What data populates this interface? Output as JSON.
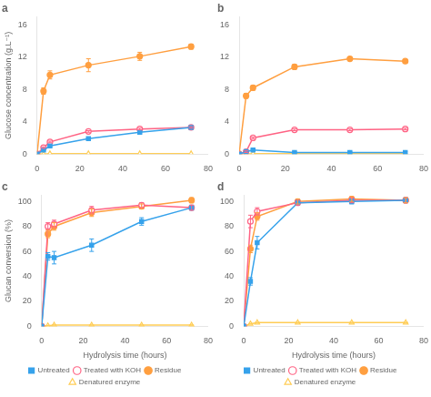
{
  "chart_data": [
    {
      "type": "line",
      "title": "a",
      "x": [
        0,
        3,
        6,
        24,
        48,
        72
      ],
      "xlim": [
        0,
        80
      ],
      "xticks": [
        0,
        20,
        40,
        60,
        80
      ],
      "ylim": [
        0,
        17
      ],
      "yticks": [
        0,
        4,
        8,
        12,
        16
      ],
      "ylabel": "Glucose concentration (g.L⁻¹)",
      "grid": false,
      "series": [
        {
          "name": "Untreated",
          "values": [
            0,
            0.5,
            1.0,
            1.9,
            2.7,
            3.3
          ],
          "errors": [
            0,
            0.1,
            0.1,
            0.1,
            0.1,
            0.1
          ],
          "marker": "square",
          "line_style": "solid"
        },
        {
          "name": "Treated with KOH",
          "values": [
            0,
            0.8,
            1.5,
            2.8,
            3.1,
            3.3
          ],
          "errors": [
            0,
            0.1,
            0.1,
            0.1,
            0.1,
            0.1
          ],
          "marker": "open_circle",
          "line_style": "solid"
        },
        {
          "name": "Residue",
          "values": [
            0,
            7.8,
            9.8,
            11.0,
            12.1,
            13.3
          ],
          "errors": [
            0,
            0.4,
            0.5,
            0.8,
            0.5,
            0.3
          ],
          "marker": "circle",
          "line_style": "solid"
        },
        {
          "name": "Denatured enzyme",
          "values": [
            0,
            0.0,
            0.05,
            0.05,
            0.05,
            0.05
          ],
          "errors": [
            0,
            0.0,
            0.0,
            0.0,
            0.0,
            0.0
          ],
          "marker": "open_triangle",
          "line_style": "solid"
        }
      ]
    },
    {
      "type": "line",
      "title": "b",
      "x": [
        0,
        3,
        6,
        24,
        48,
        72
      ],
      "xlim": [
        0,
        80
      ],
      "xticks": [
        0,
        20,
        40,
        60,
        80
      ],
      "ylim": [
        0,
        17
      ],
      "yticks": [
        0,
        4,
        8,
        12,
        16
      ],
      "grid": false,
      "series": [
        {
          "name": "Untreated",
          "values": [
            0,
            0.3,
            0.5,
            0.2,
            0.2,
            0.2
          ],
          "errors": [
            0,
            0.1,
            0.1,
            0.1,
            0.1,
            0.1
          ],
          "marker": "square",
          "line_style": "solid"
        },
        {
          "name": "Treated with KOH",
          "values": [
            0,
            0.3,
            2.0,
            3.0,
            3.0,
            3.1
          ],
          "errors": [
            0,
            0.1,
            0.1,
            0.1,
            0.1,
            0.1
          ],
          "marker": "open_circle",
          "line_style": "solid"
        },
        {
          "name": "Residue",
          "values": [
            0,
            7.2,
            8.2,
            10.8,
            11.8,
            11.5
          ],
          "errors": [
            0,
            0.3,
            0.3,
            0.3,
            0.2,
            0.2
          ],
          "marker": "circle",
          "line_style": "solid"
        },
        {
          "name": "Denatured enzyme",
          "values": [
            0,
            0.0,
            0.05,
            0.05,
            0.05,
            0.05
          ],
          "errors": [
            0,
            0.0,
            0.0,
            0.0,
            0.0,
            0.0
          ],
          "marker": "open_triangle",
          "line_style": "solid"
        }
      ]
    },
    {
      "type": "line",
      "title": "c",
      "x": [
        0,
        3,
        6,
        24,
        48,
        72
      ],
      "xlim": [
        0,
        80
      ],
      "xticks": [
        0,
        20,
        40,
        60,
        80
      ],
      "ylim": [
        0,
        105
      ],
      "yticks": [
        0,
        20,
        40,
        60,
        80,
        100
      ],
      "xlabel": "Hydrolysis time (hours)",
      "ylabel": "Glucan conversion (%)",
      "grid": false,
      "legend": "bottom",
      "series": [
        {
          "name": "Untreated",
          "values": [
            0,
            56,
            55,
            65,
            84,
            95
          ],
          "errors": [
            0,
            3,
            5,
            5,
            3,
            2
          ],
          "marker": "square",
          "line_style": "solid"
        },
        {
          "name": "Treated with KOH",
          "values": [
            0,
            80,
            82,
            93,
            97,
            95
          ],
          "errors": [
            0,
            3,
            3,
            3,
            2,
            2
          ],
          "marker": "open_circle",
          "line_style": "solid"
        },
        {
          "name": "Residue",
          "values": [
            0,
            74,
            80,
            91,
            96,
            101
          ],
          "errors": [
            0,
            3,
            3,
            3,
            2,
            2
          ],
          "marker": "circle",
          "line_style": "solid"
        },
        {
          "name": "Denatured enzyme",
          "values": [
            0,
            0.5,
            1,
            1,
            1,
            1
          ],
          "errors": [
            0,
            0.2,
            0.2,
            0.2,
            0.2,
            0.2
          ],
          "marker": "open_triangle",
          "line_style": "solid"
        }
      ]
    },
    {
      "type": "line",
      "title": "d",
      "x": [
        0,
        3,
        6,
        24,
        48,
        72
      ],
      "xlim": [
        0,
        80
      ],
      "xticks": [
        0,
        20,
        40,
        60,
        80
      ],
      "ylim": [
        0,
        105
      ],
      "yticks": [
        0,
        20,
        40,
        60,
        80,
        100
      ],
      "xlabel": "Hydrolysis time (hours)",
      "grid": false,
      "legend": "bottom",
      "series": [
        {
          "name": "Untreated",
          "values": [
            0,
            36,
            67,
            99,
            100,
            101
          ],
          "errors": [
            0,
            3,
            5,
            2,
            2,
            2
          ],
          "marker": "square",
          "line_style": "solid"
        },
        {
          "name": "Treated with KOH",
          "values": [
            0,
            84,
            92,
            99,
            101,
            101
          ],
          "errors": [
            0,
            5,
            3,
            2,
            2,
            2
          ],
          "marker": "open_circle",
          "line_style": "solid"
        },
        {
          "name": "Residue",
          "values": [
            0,
            62,
            88,
            100,
            102,
            101
          ],
          "errors": [
            0,
            3,
            3,
            2,
            2,
            2
          ],
          "marker": "circle",
          "line_style": "solid"
        },
        {
          "name": "Denatured enzyme",
          "values": [
            0,
            2,
            3,
            3,
            3,
            3
          ],
          "errors": [
            0,
            0.2,
            0.2,
            0.2,
            0.2,
            0.2
          ],
          "marker": "open_triangle",
          "line_style": "solid"
        }
      ]
    }
  ]
}
